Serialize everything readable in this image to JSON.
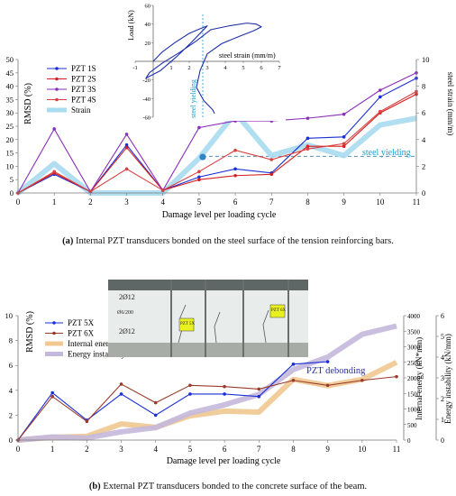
{
  "chart_data": [
    {
      "type": "line",
      "title": "",
      "xlabel": "Damage level per loading cycle",
      "ylabel": "RMSD (%)",
      "y2label": "steel strain (mm/m)",
      "x": [
        0,
        1,
        2,
        3,
        4,
        5,
        6,
        7,
        8,
        9,
        10,
        11
      ],
      "xlim": [
        0,
        11
      ],
      "ylim": [
        0,
        50
      ],
      "y2lim": [
        0,
        10
      ],
      "yticks": [
        0,
        5,
        10,
        15,
        20,
        25,
        30,
        35,
        40,
        45,
        50
      ],
      "y2ticks": [
        0,
        2,
        4,
        6,
        8,
        10
      ],
      "legend_position": "top-left",
      "series": [
        {
          "name": "PZT 1S",
          "color": "#1a2fd6",
          "axis": "left",
          "values": [
            0,
            7,
            0.5,
            18,
            1,
            6,
            9,
            7.5,
            20.5,
            21,
            36,
            43
          ]
        },
        {
          "name": "PZT 2S",
          "color": "#d62020",
          "axis": "left",
          "values": [
            0,
            7.5,
            0.5,
            17,
            1,
            5,
            6.5,
            7,
            17.5,
            17.5,
            30,
            37
          ]
        },
        {
          "name": "PZT 3S",
          "color": "#8a2fb8",
          "axis": "left",
          "values": [
            0,
            24,
            0.5,
            22,
            1,
            24.5,
            27,
            27,
            28,
            29.5,
            38.5,
            45
          ]
        },
        {
          "name": "PZT 4S",
          "color": "#d94040",
          "axis": "left",
          "values": [
            0,
            8,
            0.5,
            9,
            1,
            8,
            16,
            12.5,
            16.5,
            18.5,
            30.5,
            38
          ]
        },
        {
          "name": "Strain",
          "color": "#a9dcf0",
          "axis": "right",
          "values": [
            0,
            2.2,
            0,
            0,
            0,
            2.6,
            6,
            2.8,
            3.6,
            2.8,
            5.1,
            5.6
          ]
        }
      ],
      "annotations": [
        {
          "text": "steel yielding",
          "position": "right of cycle 9"
        }
      ],
      "marker": {
        "x": 5.1,
        "y2": 2.7
      },
      "yield_line_y2": 2.75,
      "inset": {
        "xlabel": "steel strain (mm/m)",
        "ylabel": "Load (kN)",
        "xlim": [
          -1,
          7
        ],
        "ylim": [
          -60,
          60
        ],
        "xticks": [
          -1,
          1,
          2,
          3,
          4,
          5,
          6,
          7
        ],
        "yticks": [
          -60,
          -40,
          -20,
          20,
          40,
          60
        ],
        "yield_x": 2.75,
        "yield_label": "steel yielding",
        "loops": [
          {
            "strain": [
              0,
              0.5,
              1.2,
              2,
              2.6,
              3,
              2.7,
              2.1,
              1.3,
              0.4,
              -0.4,
              -0.2,
              0.5,
              1.5,
              2.4
            ],
            "load": [
              0,
              10,
              20,
              30,
              35,
              38,
              32,
              20,
              5,
              -10,
              -18,
              -12,
              -2,
              10,
              22
            ]
          },
          {
            "strain": [
              2.4,
              3.2,
              4.2,
              5.2,
              5.7,
              6,
              5.6,
              4.8,
              3.8,
              3,
              2.6,
              2.4,
              2.8,
              3.3,
              3.4
            ],
            "load": [
              22,
              34,
              38,
              41,
              40,
              37,
              33,
              27,
              19,
              8,
              -10,
              -28,
              -42,
              -52,
              -56
            ]
          }
        ]
      }
    },
    {
      "type": "line",
      "title": "",
      "xlabel": "Damage level per loading cycle",
      "ylabel": "RMSD (%)",
      "y2label": "Internal energy (kN*mm)",
      "y3label": "Energy instability (kN/mm)",
      "x": [
        0,
        1,
        2,
        3,
        4,
        5,
        6,
        7,
        8,
        9,
        10,
        11
      ],
      "xlim": [
        0,
        11
      ],
      "ylim": [
        0,
        10
      ],
      "y2lim": [
        0,
        4000
      ],
      "y3lim": [
        0,
        6
      ],
      "yticks": [
        0,
        2,
        4,
        6,
        8,
        10
      ],
      "y2ticks": [
        0,
        500,
        1000,
        1500,
        2000,
        2500,
        3000,
        3500,
        4000
      ],
      "y3ticks": [
        0,
        1,
        2,
        3,
        4,
        5,
        6
      ],
      "legend_position": "top-left",
      "series": [
        {
          "name": "PZT 5X",
          "color": "#1a2fd6",
          "axis": "left",
          "x": [
            0,
            1,
            2,
            3,
            4,
            5,
            6,
            7,
            8,
            9
          ],
          "values": [
            0,
            3.8,
            1.6,
            3.7,
            2.0,
            3.7,
            3.7,
            3.5,
            6.1,
            6.3
          ]
        },
        {
          "name": "PZT 6X",
          "color": "#9a3a2a",
          "axis": "left",
          "values": [
            0,
            3.5,
            1.5,
            4.5,
            3.0,
            4.4,
            4.3,
            4.1,
            4.8,
            4.4,
            4.8,
            5.1
          ]
        },
        {
          "name": "Internal energy",
          "color": "#f0c890",
          "axis": "right",
          "values": [
            0,
            90,
            120,
            520,
            410,
            780,
            930,
            900,
            1950,
            1750,
            1950,
            2500
          ]
        },
        {
          "name": "Energy instability",
          "color": "#c4b8dc",
          "axis": "right2",
          "values": [
            0,
            0.15,
            0.1,
            0.4,
            0.6,
            1.3,
            1.7,
            2.2,
            3.4,
            4.0,
            5.1,
            5.5
          ]
        }
      ],
      "annotations": [
        {
          "text": "PZT debonding",
          "position": "right of cycle 8"
        }
      ],
      "photo": {
        "labels": [
          "2Ø12",
          "Ø6/200",
          "2Ø12",
          "PZT 5X",
          "PZT 6X"
        ]
      }
    }
  ],
  "captions": {
    "a_label": "(a)",
    "a_text": " Internal PZT transducers bonded on the steel surface of the tension reinforcing bars.",
    "b_label": "(b)",
    "b_text": " External PZT transducers bonded to the concrete surface of the beam."
  }
}
